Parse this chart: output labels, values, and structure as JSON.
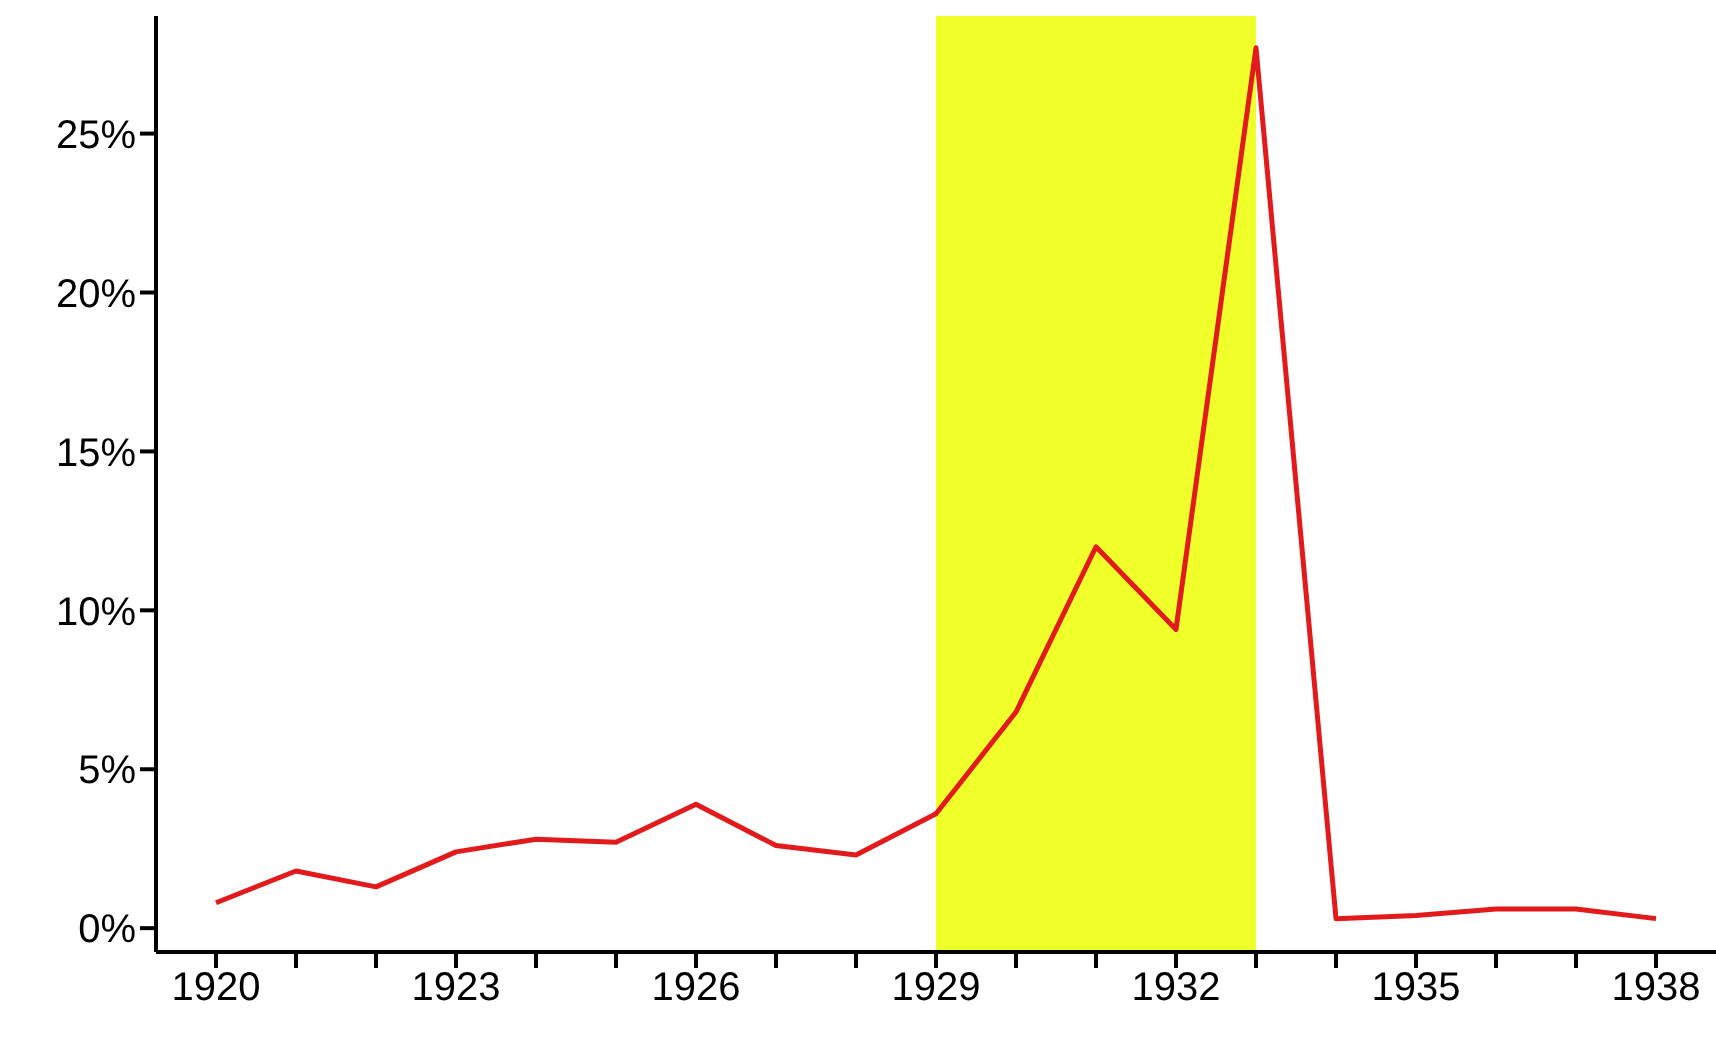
{
  "chart_data": {
    "type": "line",
    "x": [
      1920,
      1921,
      1922,
      1923,
      1924,
      1925,
      1926,
      1927,
      1928,
      1929,
      1930,
      1931,
      1932,
      1933,
      1934,
      1935,
      1936,
      1937,
      1938
    ],
    "series": [
      {
        "color": "#e31a1c",
        "values": [
          0.8,
          1.8,
          1.3,
          2.4,
          2.8,
          2.7,
          3.9,
          2.6,
          2.3,
          3.6,
          6.8,
          12.0,
          9.4,
          27.7,
          0.3,
          0.4,
          0.6,
          0.6,
          0.3
        ]
      }
    ],
    "xlim": [
      1919.25,
      1938.75
    ],
    "xticks": [
      1920,
      {
        "value": 1921,
        "label": null
      },
      {
        "value": 1922,
        "label": null
      },
      1923,
      {
        "value": 1924,
        "label": null
      },
      {
        "value": 1925,
        "label": null
      },
      1926,
      {
        "value": 1927,
        "label": null
      },
      {
        "value": 1928,
        "label": null
      },
      1929,
      {
        "value": 1930,
        "label": null
      },
      {
        "value": 1931,
        "label": null
      },
      1932,
      {
        "value": 1933,
        "label": null
      },
      {
        "value": 1934,
        "label": null
      },
      1935,
      {
        "value": 1936,
        "label": null
      },
      {
        "value": 1937,
        "label": null
      },
      1938
    ],
    "ylim": [
      -0.75,
      28.7
    ],
    "yticks": [
      {
        "value": 0,
        "label": "0%"
      },
      {
        "value": 5,
        "label": "5%"
      },
      {
        "value": 10,
        "label": "10%"
      },
      {
        "value": 15,
        "label": "15%"
      },
      {
        "value": 20,
        "label": "20%"
      },
      {
        "value": 25,
        "label": "25%"
      }
    ],
    "bands": [
      {
        "axis": "x",
        "from": 1929,
        "to": 1933,
        "color": "#f0ff2a"
      }
    ],
    "grid": false,
    "legend": false,
    "marker": "none",
    "line_style": "solid"
  }
}
